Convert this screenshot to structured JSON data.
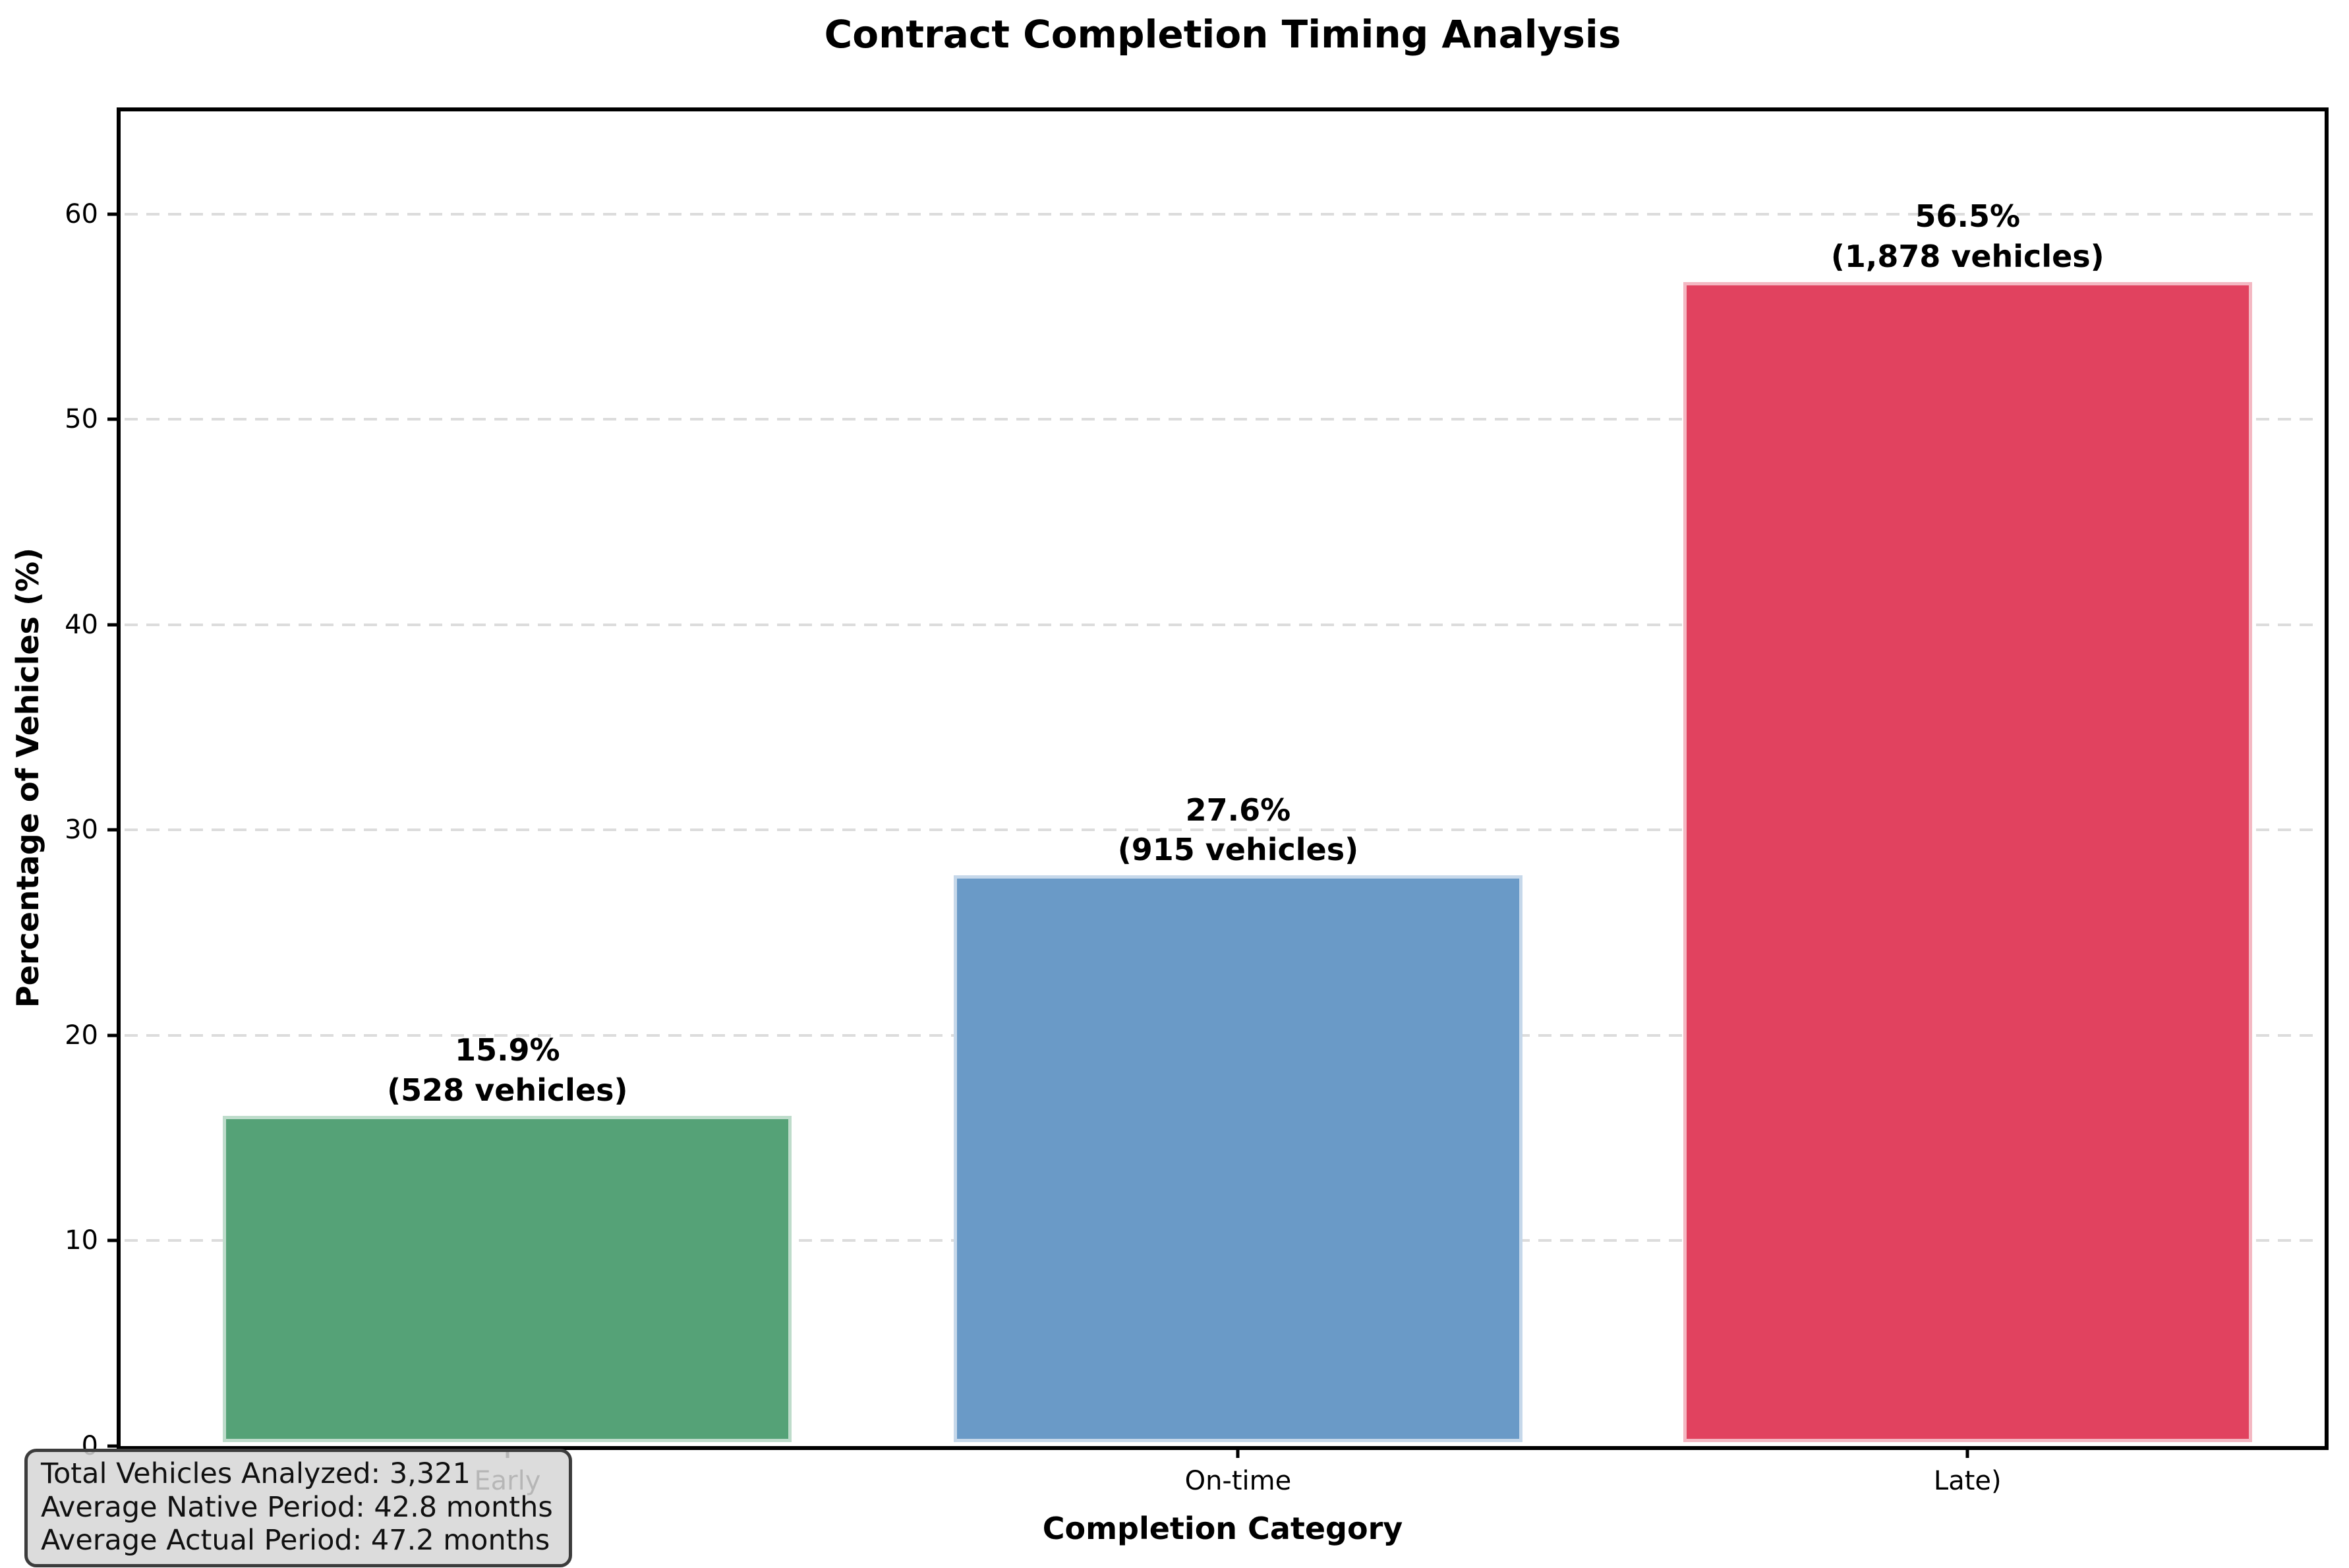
{
  "chart_data": {
    "type": "bar",
    "title": "Contract Completion Timing Analysis",
    "xlabel": "Completion Category",
    "ylabel": "Percentage of Vehicles (%)",
    "categories": [
      "Early",
      "On-time",
      "Late)"
    ],
    "values": [
      15.9,
      27.6,
      56.5
    ],
    "vehicle_counts": [
      528,
      915,
      1878
    ],
    "bar_value_labels": [
      {
        "line1": "15.9%",
        "line2": "(528 vehicles)"
      },
      {
        "line1": "27.6%",
        "line2": "(915 vehicles)"
      },
      {
        "line1": "56.5%",
        "line2": "(1,878 vehicles)"
      }
    ],
    "bar_colors": [
      "#55a277",
      "#6a9ac7",
      "#e1425f"
    ],
    "ylim": [
      0,
      65
    ],
    "yticks": [
      0,
      10,
      20,
      30,
      40,
      50,
      60
    ],
    "grid": {
      "axis": "y",
      "style": "dashed",
      "color": "#dcdcdc"
    },
    "legend": null,
    "stats_box": {
      "lines": [
        "Total Vehicles Analyzed: 3,321",
        "Average Native Period: 42.8 months",
        "Average Actual Period: 47.2 months"
      ]
    }
  }
}
